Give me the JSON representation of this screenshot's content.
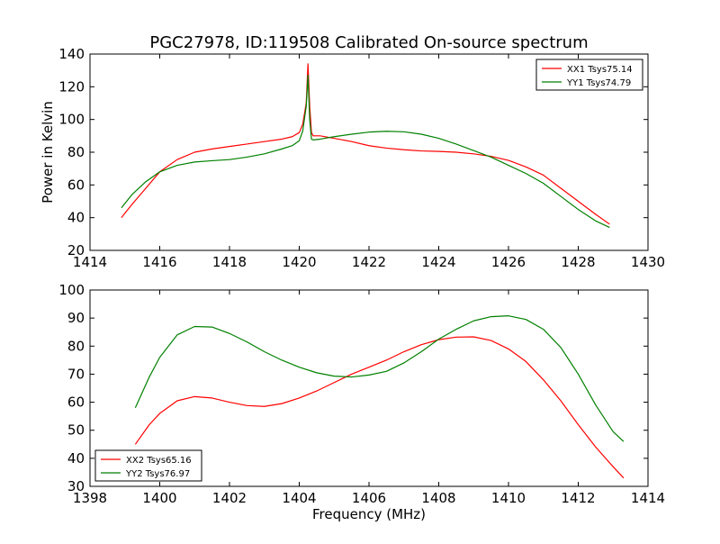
{
  "title": "PGC27978, ID:119508 Calibrated On-source spectrum",
  "chart_data": [
    {
      "type": "line",
      "title": "PGC27978, ID:119508 Calibrated On-source spectrum",
      "xlabel": "",
      "ylabel": "Power in Kelvin",
      "xlim": [
        1414,
        1430
      ],
      "ylim": [
        20,
        140
      ],
      "xticks": [
        1414,
        1416,
        1418,
        1420,
        1422,
        1424,
        1426,
        1428,
        1430
      ],
      "yticks": [
        20,
        40,
        60,
        80,
        100,
        120,
        140
      ],
      "grid": false,
      "legend_position": "upper right",
      "series": [
        {
          "name": "XX1 Tsys75.14",
          "color": "#ff0000",
          "x": [
            1414.9,
            1415.2,
            1415.6,
            1416.0,
            1416.5,
            1417.0,
            1417.5,
            1418.0,
            1418.5,
            1419.0,
            1419.5,
            1419.8,
            1420.0,
            1420.1,
            1420.2,
            1420.25,
            1420.3,
            1420.35,
            1420.4,
            1420.6,
            1421.0,
            1421.5,
            1422.0,
            1422.5,
            1423.0,
            1423.5,
            1424.0,
            1424.5,
            1425.0,
            1425.5,
            1426.0,
            1426.5,
            1427.0,
            1427.5,
            1428.0,
            1428.5,
            1428.9
          ],
          "y": [
            40,
            48,
            58,
            68,
            75.5,
            80,
            82,
            83.5,
            85,
            86.5,
            88,
            89.5,
            92,
            97,
            110,
            134,
            108,
            92,
            90,
            90,
            88.5,
            86.5,
            84,
            82.5,
            81.5,
            80.8,
            80.5,
            80,
            79,
            77.5,
            75,
            71,
            66,
            58,
            50,
            42,
            36
          ]
        },
        {
          "name": "YY1 Tsys74.79",
          "color": "#008000",
          "x": [
            1414.9,
            1415.2,
            1415.6,
            1416.0,
            1416.5,
            1417.0,
            1417.5,
            1418.0,
            1418.5,
            1419.0,
            1419.5,
            1419.8,
            1420.0,
            1420.1,
            1420.2,
            1420.25,
            1420.3,
            1420.35,
            1420.4,
            1420.6,
            1421.0,
            1421.5,
            1422.0,
            1422.5,
            1423.0,
            1423.5,
            1424.0,
            1424.5,
            1425.0,
            1425.5,
            1426.0,
            1426.5,
            1427.0,
            1427.5,
            1428.0,
            1428.5,
            1428.9
          ],
          "y": [
            46,
            54,
            62,
            68,
            72,
            74,
            74.8,
            75.5,
            77,
            79,
            82,
            84,
            87,
            93,
            108,
            127,
            100,
            88,
            87.5,
            88,
            89.5,
            91,
            92.3,
            92.8,
            92.5,
            91,
            88.5,
            85,
            81,
            77,
            72,
            67,
            61,
            53,
            45,
            38,
            34
          ]
        }
      ]
    },
    {
      "type": "line",
      "title": "",
      "xlabel": "Frequency (MHz)",
      "ylabel": "",
      "xlim": [
        1398,
        1414
      ],
      "ylim": [
        30,
        100
      ],
      "xticks": [
        1398,
        1400,
        1402,
        1404,
        1406,
        1408,
        1410,
        1412,
        1414
      ],
      "yticks": [
        30,
        40,
        50,
        60,
        70,
        80,
        90,
        100
      ],
      "grid": false,
      "legend_position": "lower left",
      "series": [
        {
          "name": "XX2 Tsys65.16",
          "color": "#ff0000",
          "x": [
            1399.3,
            1399.7,
            1400.0,
            1400.5,
            1401.0,
            1401.5,
            1402.0,
            1402.5,
            1403.0,
            1403.5,
            1404.0,
            1404.5,
            1405.0,
            1405.5,
            1406.0,
            1406.5,
            1407.0,
            1407.5,
            1408.0,
            1408.5,
            1409.0,
            1409.5,
            1410.0,
            1410.5,
            1411.0,
            1411.5,
            1412.0,
            1412.5,
            1413.0,
            1413.3
          ],
          "y": [
            45,
            52,
            56,
            60.5,
            62,
            61.5,
            60,
            58.8,
            58.5,
            59.5,
            61.5,
            64,
            67,
            70,
            72.5,
            75,
            78,
            80.5,
            82.3,
            83.2,
            83.3,
            82,
            79,
            74.5,
            68,
            60.5,
            52,
            44,
            37,
            33
          ]
        },
        {
          "name": "YY2 Tsys76.97",
          "color": "#008000",
          "x": [
            1399.3,
            1399.7,
            1400.0,
            1400.5,
            1401.0,
            1401.5,
            1402.0,
            1402.5,
            1403.0,
            1403.5,
            1404.0,
            1404.5,
            1405.0,
            1405.5,
            1406.0,
            1406.5,
            1407.0,
            1407.5,
            1408.0,
            1408.5,
            1409.0,
            1409.5,
            1410.0,
            1410.5,
            1411.0,
            1411.5,
            1412.0,
            1412.5,
            1413.0,
            1413.3
          ],
          "y": [
            58,
            69,
            76,
            84,
            87,
            86.8,
            84.5,
            81.5,
            78,
            75,
            72.5,
            70.5,
            69.3,
            69,
            69.7,
            71,
            74,
            78,
            82.5,
            86,
            89,
            90.5,
            90.8,
            89.5,
            86,
            79.5,
            70,
            59,
            49.5,
            46
          ]
        }
      ]
    }
  ]
}
